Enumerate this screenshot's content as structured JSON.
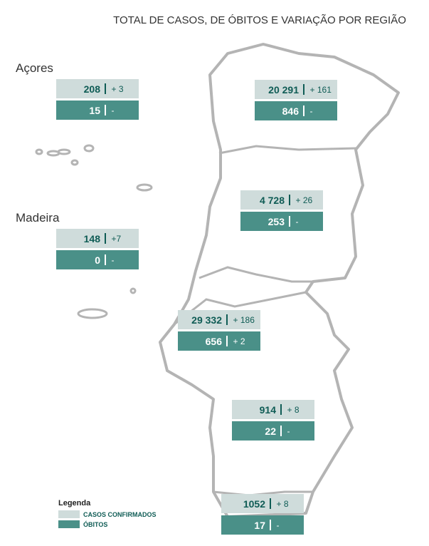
{
  "header": {
    "title": "TOTAL DE CASOS, DE ÓBITOS  E VARIAÇÃO POR REGIÃO"
  },
  "regions": [
    {
      "name": "Açores",
      "cases": "208",
      "cases_change": "+ 3",
      "deaths": "15",
      "deaths_change": "-"
    },
    {
      "cases": "20 291",
      "cases_change": "+ 161",
      "deaths": "846",
      "deaths_change": "-"
    },
    {
      "cases": "4 728",
      "cases_change": "+ 26",
      "deaths": "253",
      "deaths_change": "-"
    },
    {
      "name": "Madeira",
      "cases": "148",
      "cases_change": "+7",
      "deaths": "0",
      "deaths_change": "-"
    },
    {
      "cases": "29 332",
      "cases_change": "+ 186",
      "deaths": "656",
      "deaths_change": "+ 2"
    },
    {
      "cases": "914",
      "cases_change": "+ 8",
      "deaths": "22",
      "deaths_change": "-"
    },
    {
      "cases": "1052",
      "cases_change": "+ 8",
      "deaths": "17",
      "deaths_change": "-"
    }
  ],
  "legend": {
    "title": "Legenda",
    "items": [
      "CASOS CONFIRMADOS",
      "ÓBITOS"
    ]
  }
}
